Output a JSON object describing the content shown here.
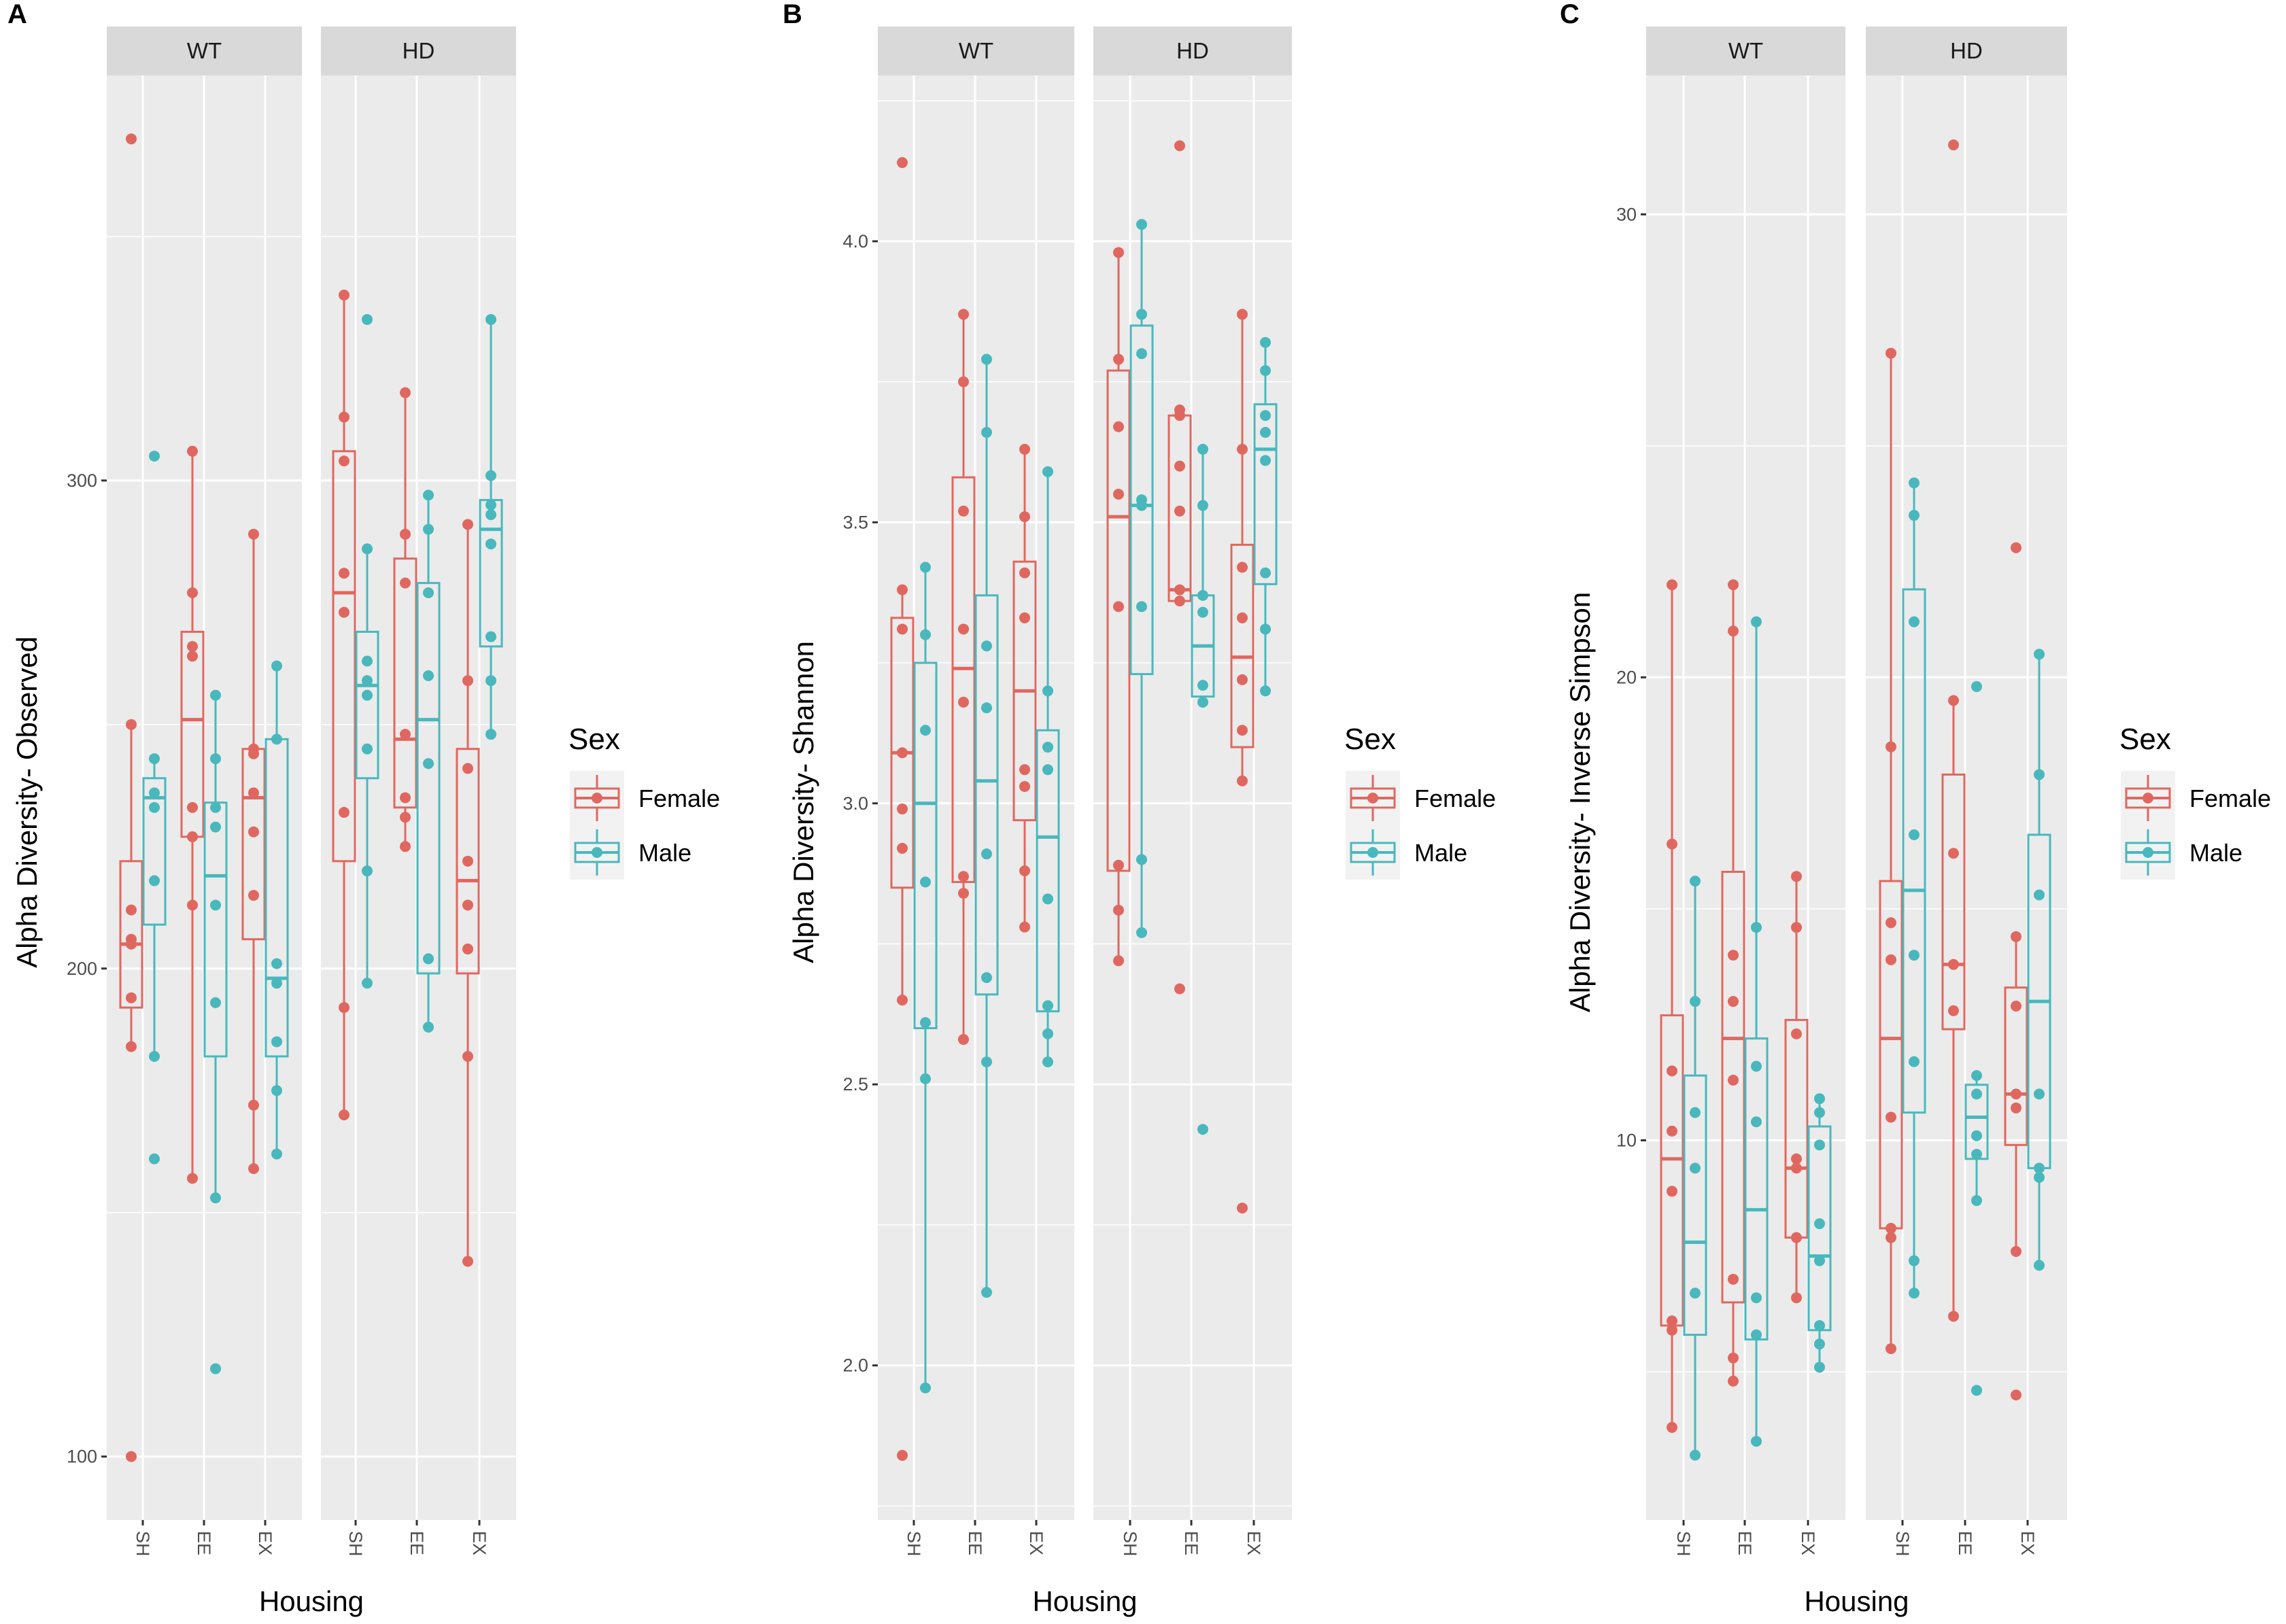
{
  "colors": {
    "Female": "#e0675f",
    "Male": "#48b8bd",
    "panel_bg": "#ebebeb",
    "strip_bg": "#d9d9d9",
    "grid": "#ffffff"
  },
  "chart_data": [
    {
      "type": "box",
      "letter": "A",
      "ylabel": "Alpha Diversity- Observed",
      "xlabel": "Housing",
      "facets": [
        "WT",
        "HD"
      ],
      "categories": [
        "SH",
        "EE",
        "EX"
      ],
      "ylim": [
        87,
        383
      ],
      "yticks": [
        100,
        200,
        300
      ],
      "yticklabels": [
        "100",
        "200",
        "300"
      ],
      "yminor": [
        150,
        250,
        350
      ],
      "legend": {
        "title": "Sex",
        "labels": [
          "Female",
          "Male"
        ],
        "placement": "right"
      },
      "boxes": [
        {
          "facet": "WT",
          "x": "SH",
          "sex": "Female",
          "lo": 184,
          "q1": 192,
          "med": 205,
          "q3": 222,
          "hi": 250,
          "points": [
            370,
            250,
            212,
            206,
            205,
            194,
            184,
            100
          ]
        },
        {
          "facet": "WT",
          "x": "SH",
          "sex": "Male",
          "lo": 182,
          "q1": 209,
          "med": 235,
          "q3": 239,
          "hi": 243,
          "points": [
            305,
            243,
            236,
            233,
            218,
            182,
            161
          ]
        },
        {
          "facet": "WT",
          "x": "EE",
          "sex": "Female",
          "lo": 157,
          "q1": 227,
          "med": 251,
          "q3": 269,
          "hi": 306,
          "points": [
            306,
            277,
            266,
            264,
            233,
            227,
            213,
            157
          ]
        },
        {
          "facet": "WT",
          "x": "EE",
          "sex": "Male",
          "lo": 153,
          "q1": 182,
          "med": 219,
          "q3": 234,
          "hi": 256,
          "points": [
            256,
            243,
            233,
            229,
            213,
            193,
            153,
            118
          ]
        },
        {
          "facet": "WT",
          "x": "EX",
          "sex": "Female",
          "lo": 159,
          "q1": 206,
          "med": 235,
          "q3": 245,
          "hi": 289,
          "points": [
            289,
            245,
            244,
            236,
            228,
            215,
            172,
            159
          ]
        },
        {
          "facet": "WT",
          "x": "EX",
          "sex": "Male",
          "lo": 162,
          "q1": 182,
          "med": 198,
          "q3": 247,
          "hi": 262,
          "points": [
            262,
            247,
            201,
            197,
            185,
            175,
            162
          ]
        },
        {
          "facet": "HD",
          "x": "SH",
          "sex": "Female",
          "lo": 170,
          "q1": 222,
          "med": 277,
          "q3": 306,
          "hi": 338,
          "points": [
            338,
            313,
            304,
            281,
            273,
            232,
            192,
            170
          ]
        },
        {
          "facet": "HD",
          "x": "SH",
          "sex": "Male",
          "lo": 197,
          "q1": 239,
          "med": 258,
          "q3": 269,
          "hi": 286,
          "points": [
            333,
            286,
            263,
            259,
            256,
            245,
            220,
            197
          ]
        },
        {
          "facet": "HD",
          "x": "EE",
          "sex": "Female",
          "lo": 225,
          "q1": 233,
          "med": 247,
          "q3": 284,
          "hi": 318,
          "points": [
            318,
            289,
            279,
            248,
            235,
            231,
            225
          ]
        },
        {
          "facet": "HD",
          "x": "EE",
          "sex": "Male",
          "lo": 188,
          "q1": 199,
          "med": 251,
          "q3": 279,
          "hi": 297,
          "points": [
            297,
            290,
            277,
            260,
            242,
            202,
            188
          ]
        },
        {
          "facet": "HD",
          "x": "EX",
          "sex": "Female",
          "lo": 140,
          "q1": 199,
          "med": 218,
          "q3": 245,
          "hi": 291,
          "points": [
            291,
            259,
            241,
            222,
            213,
            204,
            182,
            140
          ]
        },
        {
          "facet": "HD",
          "x": "EX",
          "sex": "Male",
          "lo": 248,
          "q1": 266,
          "med": 290,
          "q3": 296,
          "hi": 333,
          "points": [
            333,
            301,
            295,
            293,
            287,
            268,
            259,
            248
          ]
        }
      ]
    },
    {
      "type": "box",
      "letter": "B",
      "ylabel": "Alpha Diversity- Shannon",
      "xlabel": "Housing",
      "facets": [
        "WT",
        "HD"
      ],
      "categories": [
        "SH",
        "EE",
        "EX"
      ],
      "ylim": [
        1.725,
        4.295
      ],
      "yticks": [
        2.0,
        2.5,
        3.0,
        3.5,
        4.0
      ],
      "yticklabels": [
        "2.0",
        "2.5",
        "3.0",
        "3.5",
        "4.0"
      ],
      "yminor": [
        1.75,
        2.25,
        2.75,
        3.25,
        3.75,
        4.25
      ],
      "legend": {
        "title": "Sex",
        "labels": [
          "Female",
          "Male"
        ],
        "placement": "right"
      },
      "boxes": [
        {
          "facet": "WT",
          "x": "SH",
          "sex": "Female",
          "lo": 2.65,
          "q1": 2.85,
          "med": 3.09,
          "q3": 3.33,
          "hi": 3.38,
          "points": [
            4.14,
            3.38,
            3.31,
            3.09,
            2.99,
            2.92,
            2.65,
            1.84
          ]
        },
        {
          "facet": "WT",
          "x": "SH",
          "sex": "Male",
          "lo": 1.96,
          "q1": 2.6,
          "med": 3.0,
          "q3": 3.25,
          "hi": 3.42,
          "points": [
            3.42,
            3.3,
            3.13,
            2.86,
            2.61,
            2.51,
            1.96
          ]
        },
        {
          "facet": "WT",
          "x": "EE",
          "sex": "Female",
          "lo": 2.58,
          "q1": 2.86,
          "med": 3.24,
          "q3": 3.58,
          "hi": 3.87,
          "points": [
            3.87,
            3.75,
            3.52,
            3.31,
            3.18,
            2.87,
            2.84,
            2.58
          ]
        },
        {
          "facet": "WT",
          "x": "EE",
          "sex": "Male",
          "lo": 2.13,
          "q1": 2.66,
          "med": 3.04,
          "q3": 3.37,
          "hi": 3.79,
          "points": [
            3.79,
            3.66,
            3.28,
            3.17,
            2.91,
            2.69,
            2.54,
            2.13
          ]
        },
        {
          "facet": "WT",
          "x": "EX",
          "sex": "Female",
          "lo": 2.78,
          "q1": 2.97,
          "med": 3.2,
          "q3": 3.43,
          "hi": 3.63,
          "points": [
            3.63,
            3.51,
            3.41,
            3.33,
            3.06,
            3.03,
            2.88,
            2.78
          ]
        },
        {
          "facet": "WT",
          "x": "EX",
          "sex": "Male",
          "lo": 2.54,
          "q1": 2.63,
          "med": 2.94,
          "q3": 3.13,
          "hi": 3.59,
          "points": [
            3.59,
            3.2,
            3.1,
            3.06,
            2.83,
            2.64,
            2.59,
            2.54
          ]
        },
        {
          "facet": "HD",
          "x": "SH",
          "sex": "Female",
          "lo": 2.72,
          "q1": 2.88,
          "med": 3.51,
          "q3": 3.77,
          "hi": 3.98,
          "points": [
            3.98,
            3.79,
            3.67,
            3.55,
            3.35,
            2.89,
            2.81,
            2.72
          ]
        },
        {
          "facet": "HD",
          "x": "SH",
          "sex": "Male",
          "lo": 2.77,
          "q1": 3.23,
          "med": 3.53,
          "q3": 3.85,
          "hi": 4.03,
          "points": [
            4.03,
            3.87,
            3.8,
            3.54,
            3.53,
            3.35,
            2.9,
            2.77
          ]
        },
        {
          "facet": "HD",
          "x": "EE",
          "sex": "Female",
          "lo": 3.36,
          "q1": 3.36,
          "med": 3.38,
          "q3": 3.69,
          "hi": 3.7,
          "points": [
            4.17,
            3.7,
            3.69,
            3.6,
            3.52,
            3.38,
            3.36,
            2.67
          ]
        },
        {
          "facet": "HD",
          "x": "EE",
          "sex": "Male",
          "lo": 3.18,
          "q1": 3.19,
          "med": 3.28,
          "q3": 3.37,
          "hi": 3.63,
          "points": [
            3.63,
            3.53,
            3.37,
            3.34,
            3.21,
            3.18,
            2.42
          ]
        },
        {
          "facet": "HD",
          "x": "EX",
          "sex": "Female",
          "lo": 3.04,
          "q1": 3.1,
          "med": 3.26,
          "q3": 3.46,
          "hi": 3.87,
          "points": [
            3.87,
            3.63,
            3.42,
            3.33,
            3.22,
            3.13,
            3.04,
            2.28
          ]
        },
        {
          "facet": "HD",
          "x": "EX",
          "sex": "Male",
          "lo": 3.2,
          "q1": 3.39,
          "med": 3.63,
          "q3": 3.71,
          "hi": 3.82,
          "points": [
            3.82,
            3.77,
            3.69,
            3.66,
            3.61,
            3.41,
            3.31,
            3.2
          ]
        }
      ]
    },
    {
      "type": "box",
      "letter": "C",
      "ylabel": "Alpha Diversity- Inverse Simpson",
      "xlabel": "Housing",
      "facets": [
        "WT",
        "HD"
      ],
      "categories": [
        "SH",
        "EE",
        "EX"
      ],
      "ylim": [
        1.8,
        33.0
      ],
      "yticks": [
        10,
        20,
        30
      ],
      "yticklabels": [
        "10",
        "20",
        "30"
      ],
      "yminor": [
        5,
        15,
        25
      ],
      "legend": {
        "title": "Sex",
        "labels": [
          "Female",
          "Male"
        ],
        "placement": "right"
      },
      "boxes": [
        {
          "facet": "WT",
          "x": "SH",
          "sex": "Female",
          "lo": 3.8,
          "q1": 6.0,
          "med": 9.6,
          "q3": 12.7,
          "hi": 22.0,
          "points": [
            22.0,
            16.4,
            11.5,
            10.2,
            8.9,
            6.1,
            5.9,
            3.8
          ]
        },
        {
          "facet": "WT",
          "x": "SH",
          "sex": "Male",
          "lo": 3.2,
          "q1": 5.8,
          "med": 7.8,
          "q3": 11.4,
          "hi": 15.6,
          "points": [
            15.6,
            13.0,
            10.6,
            9.4,
            6.7,
            3.2
          ]
        },
        {
          "facet": "WT",
          "x": "EE",
          "sex": "Female",
          "lo": 4.8,
          "q1": 6.5,
          "med": 12.2,
          "q3": 15.8,
          "hi": 22.0,
          "points": [
            22.0,
            21.0,
            14.0,
            13.0,
            11.3,
            7.0,
            5.3,
            4.8
          ]
        },
        {
          "facet": "WT",
          "x": "EE",
          "sex": "Male",
          "lo": 3.5,
          "q1": 5.7,
          "med": 8.5,
          "q3": 12.2,
          "hi": 21.2,
          "points": [
            21.2,
            14.6,
            11.6,
            10.4,
            6.6,
            5.8,
            3.5
          ]
        },
        {
          "facet": "WT",
          "x": "EX",
          "sex": "Female",
          "lo": 6.6,
          "q1": 7.9,
          "med": 9.4,
          "q3": 12.6,
          "hi": 15.7,
          "points": [
            15.7,
            14.6,
            12.3,
            9.6,
            9.4,
            7.9,
            6.6
          ]
        },
        {
          "facet": "WT",
          "x": "EX",
          "sex": "Male",
          "lo": 5.1,
          "q1": 5.9,
          "med": 7.5,
          "q3": 10.3,
          "hi": 10.9,
          "points": [
            10.9,
            10.6,
            9.9,
            8.2,
            7.4,
            6.0,
            5.6,
            5.1
          ]
        },
        {
          "facet": "HD",
          "x": "SH",
          "sex": "Female",
          "lo": 5.5,
          "q1": 8.1,
          "med": 12.2,
          "q3": 15.6,
          "hi": 27.0,
          "points": [
            27.0,
            18.5,
            14.7,
            13.9,
            10.5,
            8.1,
            7.9,
            5.5
          ]
        },
        {
          "facet": "HD",
          "x": "SH",
          "sex": "Male",
          "lo": 6.7,
          "q1": 10.6,
          "med": 15.4,
          "q3": 21.9,
          "hi": 24.2,
          "points": [
            24.2,
            23.5,
            21.2,
            16.6,
            14.0,
            11.7,
            7.4,
            6.7
          ]
        },
        {
          "facet": "HD",
          "x": "EE",
          "sex": "Female",
          "lo": 6.2,
          "q1": 12.4,
          "med": 13.8,
          "q3": 17.9,
          "hi": 19.5,
          "points": [
            31.5,
            19.5,
            16.2,
            13.8,
            12.8,
            6.2
          ]
        },
        {
          "facet": "HD",
          "x": "EE",
          "sex": "Male",
          "lo": 8.7,
          "q1": 9.6,
          "med": 10.5,
          "q3": 11.2,
          "hi": 11.4,
          "points": [
            19.8,
            11.4,
            11.0,
            10.1,
            9.7,
            8.7,
            4.6
          ]
        },
        {
          "facet": "HD",
          "x": "EX",
          "sex": "Female",
          "lo": 7.6,
          "q1": 9.9,
          "med": 11.0,
          "q3": 13.3,
          "hi": 14.4,
          "points": [
            22.8,
            14.4,
            12.9,
            11.0,
            10.7,
            7.6,
            4.5
          ]
        },
        {
          "facet": "HD",
          "x": "EX",
          "sex": "Male",
          "lo": 7.3,
          "q1": 9.4,
          "med": 13.0,
          "q3": 16.6,
          "hi": 20.5,
          "points": [
            20.5,
            17.9,
            15.3,
            11.0,
            9.4,
            9.2,
            7.3
          ]
        }
      ]
    }
  ]
}
